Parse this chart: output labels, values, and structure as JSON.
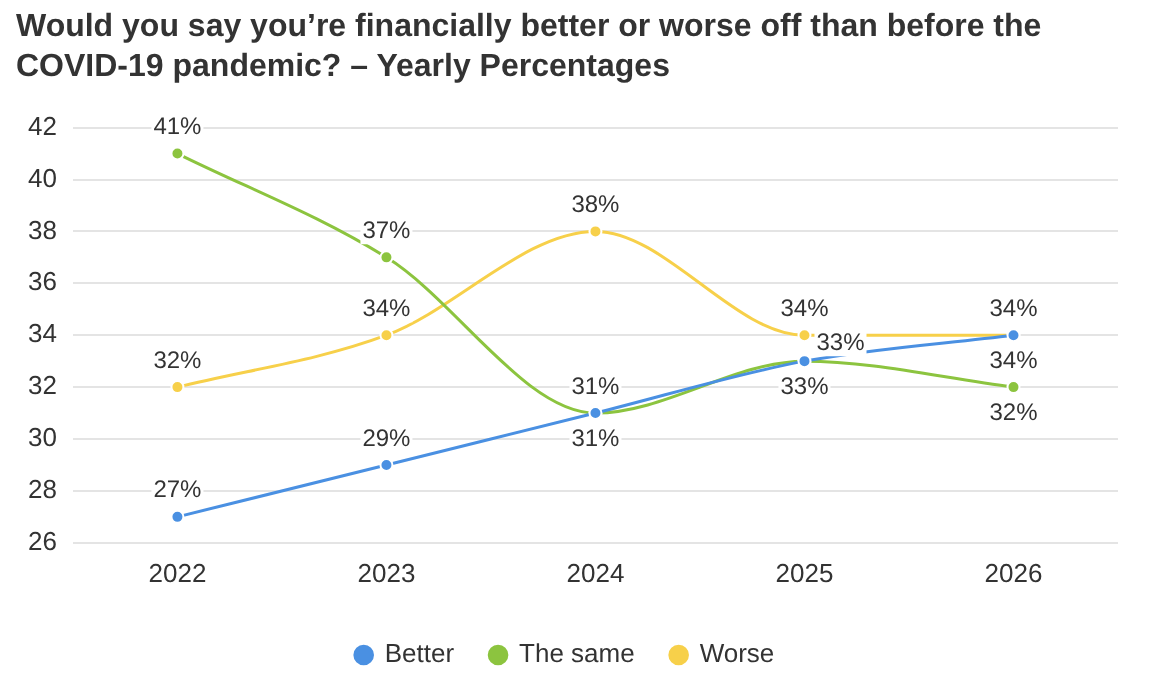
{
  "chart_data": {
    "type": "line",
    "title": "Would you say you’re financially better or worse off than before the COVID-19 pandemic? – Yearly Percentages",
    "categories": [
      "2022",
      "2023",
      "2024",
      "2025",
      "2026"
    ],
    "series": [
      {
        "name": "Better",
        "color": "#4a90e2",
        "values": [
          27,
          29,
          31,
          33,
          34
        ],
        "value_labels": [
          "27%",
          "29%",
          "31%",
          "33%",
          "34%"
        ]
      },
      {
        "name": "The same",
        "color": "#8cc43f",
        "values": [
          41,
          37,
          31,
          33,
          32
        ],
        "value_labels": [
          "41%",
          "37%",
          "31%",
          "33%",
          "32%"
        ]
      },
      {
        "name": "Worse",
        "color": "#f7d04a",
        "values": [
          32,
          34,
          38,
          34,
          34
        ],
        "value_labels": [
          "32%",
          "34%",
          "38%",
          "34%",
          "34%"
        ]
      }
    ],
    "ylim": [
      26,
      42
    ],
    "yticks": [
      26,
      28,
      30,
      32,
      34,
      36,
      38,
      40,
      42
    ],
    "grid": "y",
    "legend": "bottom",
    "marker": "circle",
    "line_style": "solid"
  }
}
